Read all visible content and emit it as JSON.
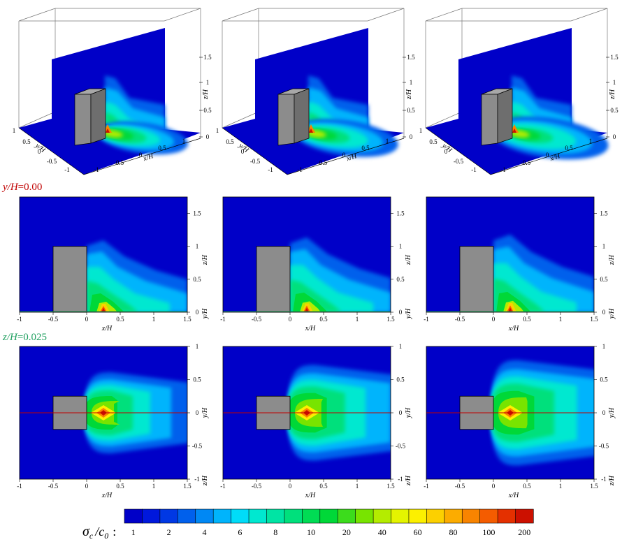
{
  "chart_data": {
    "type": "heatmap",
    "variable_label": "σc /c0 :",
    "variable_parts": {
      "sigma": "σ",
      "sub_c": "c",
      "slash": "/c",
      "sub_0": "0",
      "colon": ":"
    },
    "colorbar": {
      "tick_labels": [
        "1",
        "2",
        "4",
        "6",
        "8",
        "10",
        "20",
        "40",
        "60",
        "80",
        "100",
        "200"
      ],
      "colors": [
        "#0000c8",
        "#0018dc",
        "#0038e4",
        "#0060ec",
        "#0088f4",
        "#00b4fc",
        "#00dcf8",
        "#00e8d0",
        "#00e4a4",
        "#00e07c",
        "#00dc54",
        "#00d838",
        "#3cdc1c",
        "#78e400",
        "#b4ec00",
        "#e4f400",
        "#fcf000",
        "#fcd000",
        "#fcac00",
        "#f88400",
        "#f45c00",
        "#e43000",
        "#cc1000"
      ]
    },
    "row_labels": [
      {
        "var": "y/H",
        "value": "=0.00",
        "color": "#c00000"
      },
      {
        "var": "z/H",
        "value": "=0.025",
        "color": "#20a060"
      }
    ],
    "panels_3d": {
      "xlabel": "x/H",
      "ylabel": "y/H",
      "zlabel": "z/H",
      "x_ticks": [
        "-1",
        "-0.5",
        "0",
        "0.5",
        "1"
      ],
      "y_ticks": [
        "1",
        "0.5",
        "0",
        "-0.5",
        "-1"
      ],
      "z_ticks": [
        "0",
        "0.5",
        "1",
        "1.5"
      ]
    },
    "panels_xz": {
      "xlabel": "x/H",
      "zlabel": "z/H",
      "ylabel": "y/H",
      "x_ticks": [
        "-1",
        "-0.5",
        "0",
        "0.5",
        "1",
        "1.5"
      ],
      "z_ticks": [
        "0",
        "0.5",
        "1",
        "1.5"
      ],
      "xlim": [
        -1,
        1.5
      ],
      "zlim": [
        0,
        1.75
      ],
      "building": {
        "x": [
          -0.5,
          0
        ],
        "z": [
          0,
          1
        ]
      },
      "source": {
        "x": 0.25,
        "z": 0.025
      }
    },
    "panels_xy": {
      "xlabel": "x/H",
      "ylabel": "y/H",
      "zlabel": "z/H",
      "x_ticks": [
        "-1",
        "-0.5",
        "0",
        "0.5",
        "1",
        "1.5"
      ],
      "y_ticks": [
        "-1",
        "-0.5",
        "0",
        "0.5",
        "1"
      ],
      "xlim": [
        -1,
        1.5
      ],
      "ylim": [
        -1,
        1
      ],
      "building": {
        "x": [
          -0.5,
          0
        ],
        "y": [
          -0.25,
          0.25
        ]
      },
      "source": {
        "x": 0.25,
        "y": 0
      }
    },
    "cases": 3
  }
}
